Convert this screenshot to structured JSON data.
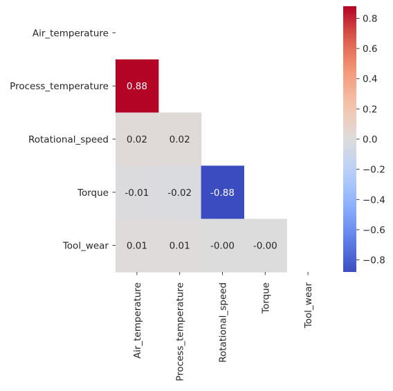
{
  "chart_data": {
    "type": "heatmap",
    "title": "",
    "xlabel": "",
    "ylabel": "",
    "row_labels": [
      "Air_temperature",
      "Process_temperature",
      "Rotational_speed",
      "Torque",
      "Tool_wear"
    ],
    "col_labels": [
      "Air_temperature",
      "Process_temperature",
      "Rotational_speed",
      "Torque",
      "Tool_wear"
    ],
    "mask": "upper triangle including diagonal",
    "cells": [
      {
        "row": 1,
        "col": 0,
        "value": 0.88,
        "label": "0.88"
      },
      {
        "row": 2,
        "col": 0,
        "value": 0.02,
        "label": "0.02"
      },
      {
        "row": 2,
        "col": 1,
        "value": 0.02,
        "label": "0.02"
      },
      {
        "row": 3,
        "col": 0,
        "value": -0.01,
        "label": "-0.01"
      },
      {
        "row": 3,
        "col": 1,
        "value": -0.02,
        "label": "-0.02"
      },
      {
        "row": 3,
        "col": 2,
        "value": -0.88,
        "label": "-0.88"
      },
      {
        "row": 4,
        "col": 0,
        "value": 0.01,
        "label": "0.01"
      },
      {
        "row": 4,
        "col": 1,
        "value": 0.01,
        "label": "0.01"
      },
      {
        "row": 4,
        "col": 2,
        "value": -0.0,
        "label": "-0.00"
      },
      {
        "row": 4,
        "col": 3,
        "value": -0.0,
        "label": "-0.00"
      }
    ],
    "colormap": "coolwarm",
    "colorbar": {
      "vmin": -0.88,
      "vmax": 0.88,
      "ticks": [
        -0.8,
        -0.6,
        -0.4,
        -0.2,
        0.0,
        0.2,
        0.4,
        0.6,
        0.8
      ],
      "tick_labels": [
        "−0.8",
        "−0.6",
        "−0.4",
        "−0.2",
        "0.0",
        "0.2",
        "0.4",
        "0.6",
        "0.8"
      ]
    }
  }
}
